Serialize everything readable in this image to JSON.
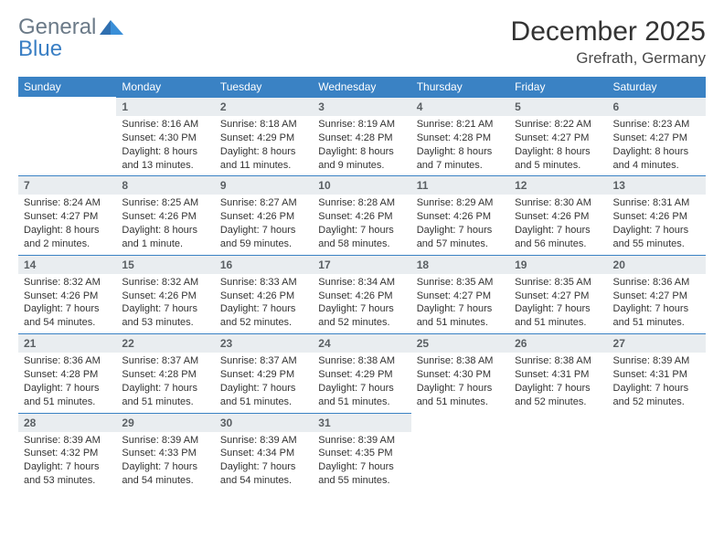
{
  "brand": {
    "word1": "General",
    "word2": "Blue"
  },
  "title": "December 2025",
  "location": "Grefrath, Germany",
  "colors": {
    "header_bg": "#3a82c4",
    "header_fg": "#ffffff",
    "daynum_bg": "#e9edf0",
    "daynum_fg": "#5a5f63",
    "rule": "#3a82c4",
    "brand_gray": "#6b7a88",
    "brand_blue": "#3a7fc4"
  },
  "day_headers": [
    "Sunday",
    "Monday",
    "Tuesday",
    "Wednesday",
    "Thursday",
    "Friday",
    "Saturday"
  ],
  "weeks": [
    [
      {
        "blank": true
      },
      {
        "n": "1",
        "sunrise": "8:16 AM",
        "sunset": "4:30 PM",
        "daylight": "8 hours and 13 minutes."
      },
      {
        "n": "2",
        "sunrise": "8:18 AM",
        "sunset": "4:29 PM",
        "daylight": "8 hours and 11 minutes."
      },
      {
        "n": "3",
        "sunrise": "8:19 AM",
        "sunset": "4:28 PM",
        "daylight": "8 hours and 9 minutes."
      },
      {
        "n": "4",
        "sunrise": "8:21 AM",
        "sunset": "4:28 PM",
        "daylight": "8 hours and 7 minutes."
      },
      {
        "n": "5",
        "sunrise": "8:22 AM",
        "sunset": "4:27 PM",
        "daylight": "8 hours and 5 minutes."
      },
      {
        "n": "6",
        "sunrise": "8:23 AM",
        "sunset": "4:27 PM",
        "daylight": "8 hours and 4 minutes."
      }
    ],
    [
      {
        "n": "7",
        "sunrise": "8:24 AM",
        "sunset": "4:27 PM",
        "daylight": "8 hours and 2 minutes."
      },
      {
        "n": "8",
        "sunrise": "8:25 AM",
        "sunset": "4:26 PM",
        "daylight": "8 hours and 1 minute."
      },
      {
        "n": "9",
        "sunrise": "8:27 AM",
        "sunset": "4:26 PM",
        "daylight": "7 hours and 59 minutes."
      },
      {
        "n": "10",
        "sunrise": "8:28 AM",
        "sunset": "4:26 PM",
        "daylight": "7 hours and 58 minutes."
      },
      {
        "n": "11",
        "sunrise": "8:29 AM",
        "sunset": "4:26 PM",
        "daylight": "7 hours and 57 minutes."
      },
      {
        "n": "12",
        "sunrise": "8:30 AM",
        "sunset": "4:26 PM",
        "daylight": "7 hours and 56 minutes."
      },
      {
        "n": "13",
        "sunrise": "8:31 AM",
        "sunset": "4:26 PM",
        "daylight": "7 hours and 55 minutes."
      }
    ],
    [
      {
        "n": "14",
        "sunrise": "8:32 AM",
        "sunset": "4:26 PM",
        "daylight": "7 hours and 54 minutes."
      },
      {
        "n": "15",
        "sunrise": "8:32 AM",
        "sunset": "4:26 PM",
        "daylight": "7 hours and 53 minutes."
      },
      {
        "n": "16",
        "sunrise": "8:33 AM",
        "sunset": "4:26 PM",
        "daylight": "7 hours and 52 minutes."
      },
      {
        "n": "17",
        "sunrise": "8:34 AM",
        "sunset": "4:26 PM",
        "daylight": "7 hours and 52 minutes."
      },
      {
        "n": "18",
        "sunrise": "8:35 AM",
        "sunset": "4:27 PM",
        "daylight": "7 hours and 51 minutes."
      },
      {
        "n": "19",
        "sunrise": "8:35 AM",
        "sunset": "4:27 PM",
        "daylight": "7 hours and 51 minutes."
      },
      {
        "n": "20",
        "sunrise": "8:36 AM",
        "sunset": "4:27 PM",
        "daylight": "7 hours and 51 minutes."
      }
    ],
    [
      {
        "n": "21",
        "sunrise": "8:36 AM",
        "sunset": "4:28 PM",
        "daylight": "7 hours and 51 minutes."
      },
      {
        "n": "22",
        "sunrise": "8:37 AM",
        "sunset": "4:28 PM",
        "daylight": "7 hours and 51 minutes."
      },
      {
        "n": "23",
        "sunrise": "8:37 AM",
        "sunset": "4:29 PM",
        "daylight": "7 hours and 51 minutes."
      },
      {
        "n": "24",
        "sunrise": "8:38 AM",
        "sunset": "4:29 PM",
        "daylight": "7 hours and 51 minutes."
      },
      {
        "n": "25",
        "sunrise": "8:38 AM",
        "sunset": "4:30 PM",
        "daylight": "7 hours and 51 minutes."
      },
      {
        "n": "26",
        "sunrise": "8:38 AM",
        "sunset": "4:31 PM",
        "daylight": "7 hours and 52 minutes."
      },
      {
        "n": "27",
        "sunrise": "8:39 AM",
        "sunset": "4:31 PM",
        "daylight": "7 hours and 52 minutes."
      }
    ],
    [
      {
        "n": "28",
        "sunrise": "8:39 AM",
        "sunset": "4:32 PM",
        "daylight": "7 hours and 53 minutes."
      },
      {
        "n": "29",
        "sunrise": "8:39 AM",
        "sunset": "4:33 PM",
        "daylight": "7 hours and 54 minutes."
      },
      {
        "n": "30",
        "sunrise": "8:39 AM",
        "sunset": "4:34 PM",
        "daylight": "7 hours and 54 minutes."
      },
      {
        "n": "31",
        "sunrise": "8:39 AM",
        "sunset": "4:35 PM",
        "daylight": "7 hours and 55 minutes."
      },
      {
        "trailing": true
      },
      {
        "trailing": true
      },
      {
        "trailing": true
      }
    ]
  ],
  "labels": {
    "sunrise": "Sunrise:",
    "sunset": "Sunset:",
    "daylight": "Daylight:"
  }
}
